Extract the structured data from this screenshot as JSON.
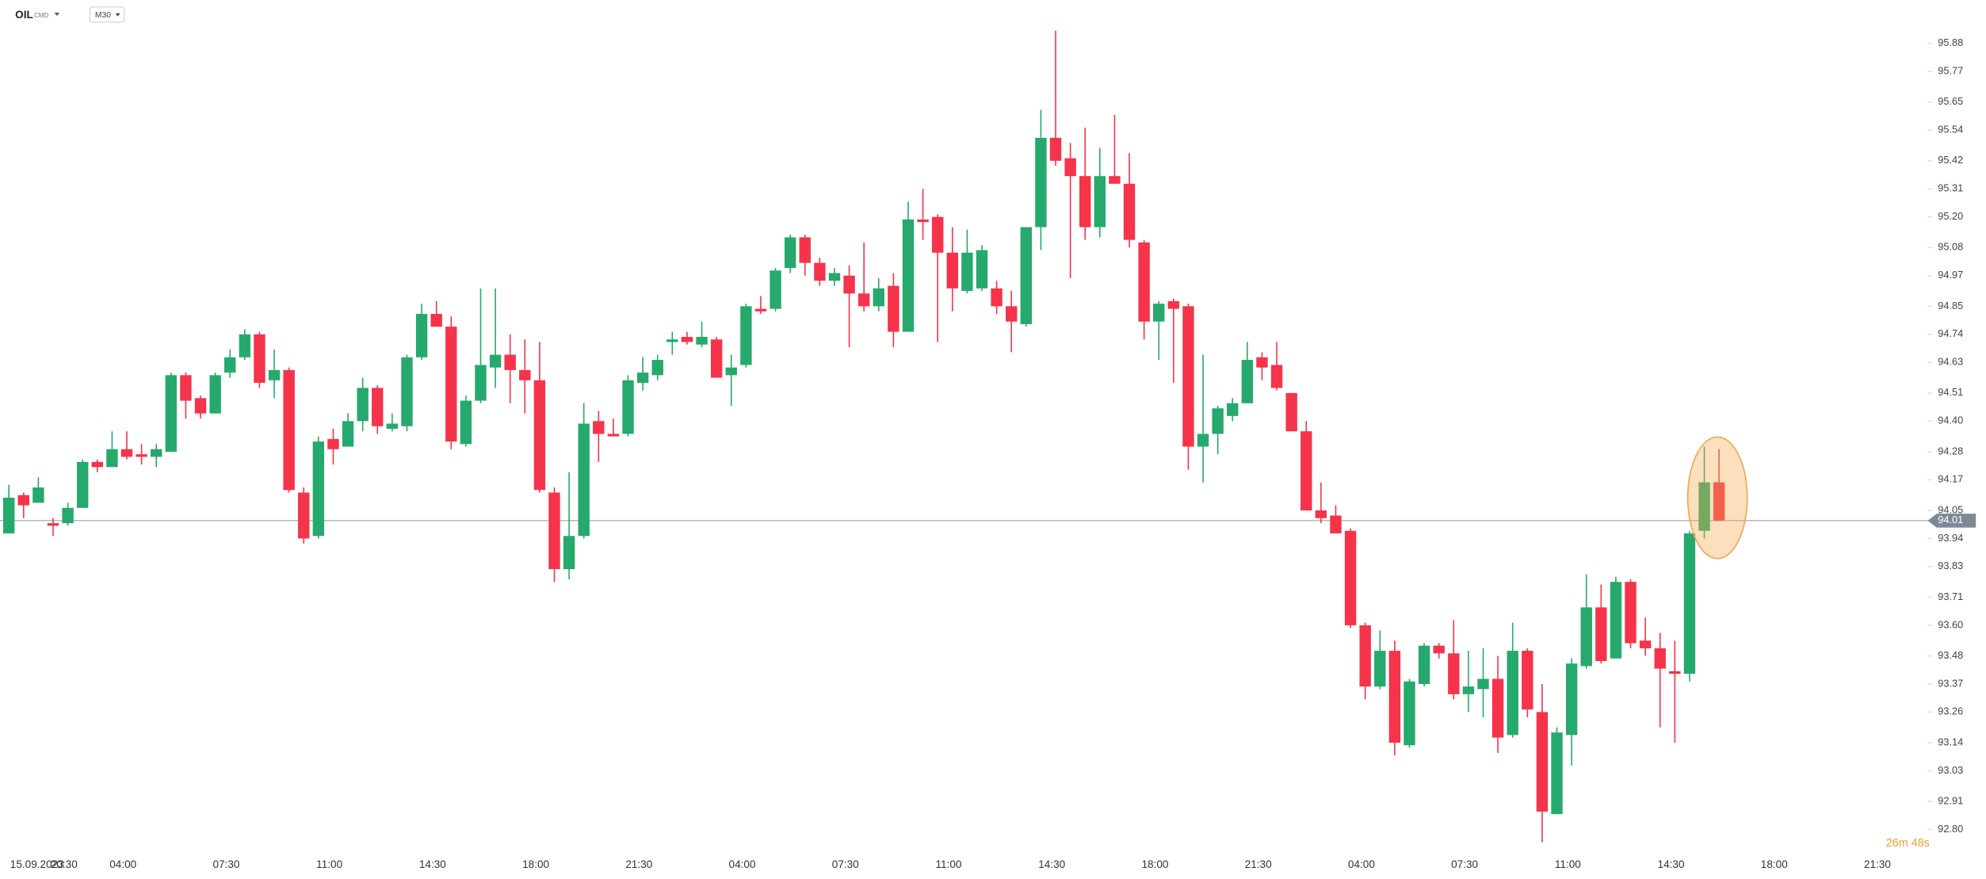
{
  "header": {
    "symbol": "OIL",
    "market": "CMD",
    "timeframe": "M30"
  },
  "chart_data": {
    "type": "candlestick",
    "up_color": "#26a96c",
    "down_color": "#f5334a",
    "categories": [
      "15.09.2023",
      null,
      null,
      null,
      "20:30",
      null,
      null,
      null,
      "04:00",
      null,
      null,
      null,
      null,
      null,
      null,
      "07:30",
      null,
      null,
      null,
      null,
      null,
      null,
      "11:00",
      null,
      null,
      null,
      null,
      null,
      null,
      "14:30",
      null,
      null,
      null,
      null,
      null,
      null,
      "18:00",
      null,
      null,
      null,
      null,
      null,
      null,
      "21:30",
      null,
      null,
      null,
      null,
      null,
      null,
      "04:00",
      null,
      null,
      null,
      null,
      null,
      null,
      "07:30",
      null,
      null,
      null,
      null,
      null,
      null,
      "11:00",
      null,
      null,
      null,
      null,
      null,
      null,
      "14:30",
      null,
      null,
      null,
      null,
      null,
      null,
      "18:00",
      null,
      null,
      null,
      null,
      null,
      null,
      "21:30",
      null,
      null,
      null,
      null,
      null,
      null,
      "04:00",
      null,
      null,
      null,
      null,
      null,
      null,
      "07:30",
      null,
      null,
      null,
      null,
      null,
      null,
      "11:00",
      null,
      null,
      null,
      null,
      null,
      null,
      "14:30",
      null,
      null,
      null,
      null,
      null,
      null,
      "18:00",
      null,
      null,
      null,
      null,
      null,
      null,
      "21:30"
    ],
    "open": [
      93.96,
      94.11,
      94.08,
      94.0,
      94.0,
      94.06,
      94.24,
      94.22,
      94.29,
      94.27,
      94.26,
      94.28,
      94.58,
      94.49,
      94.43,
      94.59,
      94.65,
      94.74,
      94.56,
      94.6,
      94.12,
      93.95,
      94.33,
      94.3,
      94.4,
      94.53,
      94.37,
      94.38,
      94.65,
      94.82,
      94.77,
      94.31,
      94.48,
      94.61,
      94.66,
      94.6,
      94.56,
      94.12,
      93.82,
      93.95,
      94.4,
      94.35,
      94.35,
      94.55,
      94.58,
      94.71,
      94.73,
      94.7,
      94.72,
      94.58,
      94.62,
      94.84,
      94.84,
      95.0,
      95.12,
      95.02,
      94.95,
      94.97,
      94.9,
      94.85,
      94.93,
      94.75,
      95.19,
      95.2,
      95.06,
      94.91,
      94.92,
      94.92,
      94.85,
      94.78,
      95.16,
      95.51,
      95.43,
      95.36,
      95.16,
      95.36,
      95.33,
      95.1,
      94.79,
      94.87,
      94.85,
      94.3,
      94.35,
      94.42,
      94.47,
      94.65,
      94.62,
      94.51,
      94.36,
      94.05,
      94.03,
      93.97,
      93.6,
      93.36,
      93.5,
      93.13,
      93.37,
      93.52,
      93.49,
      93.33,
      93.35,
      93.39,
      93.17,
      93.5,
      93.26,
      92.86,
      93.17,
      93.44,
      93.67,
      93.47,
      93.77,
      93.54,
      93.51,
      93.42,
      93.41,
      93.97,
      94.16,
      null,
      null,
      null,
      null,
      null,
      null,
      null,
      null,
      null,
      null,
      null
    ],
    "high": [
      94.15,
      94.12,
      94.18,
      94.02,
      94.08,
      94.25,
      94.25,
      94.36,
      94.36,
      94.31,
      94.31,
      94.59,
      94.59,
      94.5,
      94.59,
      94.68,
      94.76,
      94.75,
      94.68,
      94.61,
      94.14,
      94.34,
      94.37,
      94.43,
      94.57,
      94.54,
      94.43,
      94.66,
      94.86,
      94.87,
      94.81,
      94.5,
      94.92,
      94.92,
      94.74,
      94.72,
      94.71,
      94.14,
      94.2,
      94.47,
      94.44,
      94.41,
      94.58,
      94.65,
      94.66,
      94.75,
      94.75,
      94.79,
      94.73,
      94.66,
      94.86,
      94.89,
      95.0,
      95.13,
      95.13,
      95.04,
      95.0,
      95.01,
      95.1,
      94.96,
      94.98,
      95.26,
      95.31,
      95.21,
      95.16,
      95.15,
      95.09,
      94.95,
      94.91,
      95.16,
      95.62,
      95.93,
      95.49,
      95.55,
      95.47,
      95.6,
      95.45,
      95.11,
      94.87,
      94.88,
      94.86,
      94.66,
      94.46,
      94.49,
      94.71,
      94.67,
      94.71,
      94.51,
      94.4,
      94.16,
      94.07,
      93.98,
      93.61,
      93.58,
      93.54,
      93.39,
      93.53,
      93.53,
      93.62,
      93.5,
      93.51,
      93.48,
      93.61,
      93.51,
      93.37,
      93.2,
      93.47,
      93.8,
      93.76,
      93.79,
      93.78,
      93.63,
      93.57,
      93.54,
      93.97,
      94.3,
      94.29,
      null,
      null,
      null,
      null,
      null,
      null,
      null,
      null,
      null,
      null,
      null
    ],
    "low": [
      93.96,
      94.02,
      94.08,
      93.95,
      93.99,
      94.06,
      94.2,
      94.22,
      94.25,
      94.23,
      94.22,
      94.28,
      94.41,
      94.41,
      94.43,
      94.57,
      94.64,
      94.53,
      94.49,
      94.12,
      93.92,
      93.94,
      94.23,
      94.3,
      94.36,
      94.35,
      94.36,
      94.36,
      94.64,
      94.77,
      94.29,
      94.3,
      94.47,
      94.53,
      94.47,
      94.43,
      94.12,
      93.77,
      93.78,
      93.94,
      94.24,
      94.34,
      94.34,
      94.52,
      94.56,
      94.66,
      94.7,
      94.69,
      94.57,
      94.46,
      94.61,
      94.82,
      94.83,
      94.98,
      94.97,
      94.93,
      94.93,
      94.69,
      94.83,
      94.83,
      94.69,
      94.75,
      95.11,
      94.71,
      94.83,
      94.9,
      94.91,
      94.82,
      94.67,
      94.77,
      95.07,
      95.4,
      94.96,
      95.11,
      95.12,
      95.33,
      95.08,
      94.72,
      94.64,
      94.55,
      94.21,
      94.16,
      94.27,
      94.4,
      94.47,
      94.56,
      94.52,
      94.36,
      94.05,
      94.0,
      93.96,
      93.59,
      93.31,
      93.35,
      93.09,
      93.12,
      93.36,
      93.47,
      93.31,
      93.26,
      93.24,
      93.1,
      93.16,
      93.24,
      92.75,
      92.86,
      93.05,
      93.43,
      93.45,
      93.47,
      93.51,
      93.48,
      93.2,
      93.14,
      93.38,
      93.94,
      94.01,
      null,
      null,
      null,
      null,
      null,
      null,
      null,
      null,
      null,
      null,
      null
    ],
    "close": [
      94.1,
      94.07,
      94.14,
      93.99,
      94.06,
      94.24,
      94.22,
      94.29,
      94.26,
      94.26,
      94.29,
      94.58,
      94.48,
      94.43,
      94.58,
      94.65,
      94.74,
      94.55,
      94.6,
      94.13,
      93.94,
      94.32,
      94.29,
      94.4,
      94.53,
      94.38,
      94.39,
      94.65,
      94.82,
      94.77,
      94.32,
      94.48,
      94.62,
      94.66,
      94.6,
      94.56,
      94.13,
      93.82,
      93.95,
      94.39,
      94.35,
      94.34,
      94.56,
      94.59,
      94.64,
      94.72,
      94.71,
      94.73,
      94.57,
      94.61,
      94.85,
      94.83,
      94.99,
      95.12,
      95.02,
      94.95,
      94.98,
      94.9,
      94.85,
      94.92,
      94.75,
      95.19,
      95.18,
      95.06,
      94.92,
      95.06,
      95.07,
      94.85,
      94.79,
      95.16,
      95.51,
      95.42,
      95.36,
      95.16,
      95.36,
      95.33,
      95.11,
      94.79,
      94.86,
      94.84,
      94.3,
      94.35,
      94.45,
      94.47,
      94.64,
      94.61,
      94.53,
      94.36,
      94.05,
      94.02,
      93.96,
      93.6,
      93.36,
      93.5,
      93.14,
      93.38,
      93.52,
      93.49,
      93.33,
      93.36,
      93.39,
      93.16,
      93.5,
      93.27,
      92.87,
      93.18,
      93.45,
      93.67,
      93.46,
      93.77,
      93.53,
      93.51,
      93.43,
      93.41,
      93.96,
      94.16,
      94.01,
      null,
      null,
      null,
      null,
      null,
      null,
      null,
      null,
      null,
      null,
      null
    ],
    "ylim": [
      92.72,
      96.05
    ],
    "yticks": [
      {
        "value": 92.8,
        "label": "92.80"
      },
      92.91,
      93.03,
      93.14,
      93.26,
      93.37,
      93.48,
      {
        "value": 93.6,
        "label": "93.60"
      },
      93.71,
      93.83,
      93.94,
      94.05,
      94.17,
      94.28,
      {
        "value": 94.4,
        "label": "94.40"
      },
      94.51,
      94.63,
      94.74,
      94.85,
      94.97,
      95.08,
      {
        "value": 95.2,
        "label": "95.20"
      },
      95.31,
      95.42,
      95.54,
      95.65,
      95.77,
      95.88
    ],
    "current_price": 94.01,
    "timer": "26m 48s"
  }
}
